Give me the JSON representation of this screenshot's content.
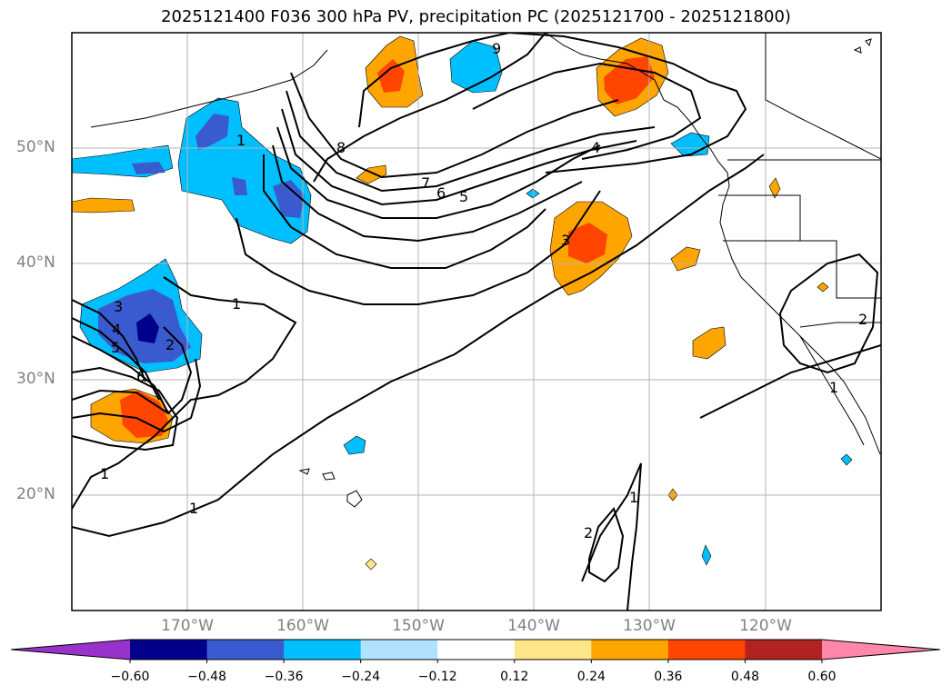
{
  "title": "2025121400 F036 300 hPa PV, precipitation PC (2025121700 - 2025121800)",
  "map": {
    "extent_lon": [
      -180,
      -110
    ],
    "extent_lat": [
      10,
      60
    ],
    "lat_labels": [
      "50°N",
      "40°N",
      "30°N",
      "20°N"
    ],
    "lat_values": [
      50,
      40,
      30,
      20
    ],
    "lon_labels": [
      "170°W",
      "160°W",
      "150°W",
      "140°W",
      "130°W",
      "120°W"
    ],
    "lon_values": [
      -170,
      -160,
      -150,
      -140,
      -130,
      -120
    ],
    "grid": true
  },
  "colorbar": {
    "labels": [
      "−0.60",
      "−0.48",
      "−0.36",
      "−0.24",
      "−0.12",
      "0.12",
      "0.24",
      "0.36",
      "0.48",
      "0.60"
    ],
    "levels": [
      -0.6,
      -0.48,
      -0.36,
      -0.24,
      -0.12,
      0.12,
      0.24,
      0.36,
      0.48,
      0.6
    ],
    "colors": [
      "#9932cc",
      "#00008b",
      "#3a5bcf",
      "#00bfff",
      "#b0e2ff",
      "#ffffff",
      "#ffe68a",
      "#ffa500",
      "#ff4500",
      "#b22222",
      "#ff88aa"
    ],
    "extend": "both"
  },
  "contour_labels": [
    "1",
    "1",
    "1",
    "1",
    "1",
    "1",
    "2",
    "2",
    "2",
    "3",
    "3",
    "4",
    "4",
    "5",
    "5",
    "6",
    "6",
    "7",
    "8",
    "9"
  ]
}
